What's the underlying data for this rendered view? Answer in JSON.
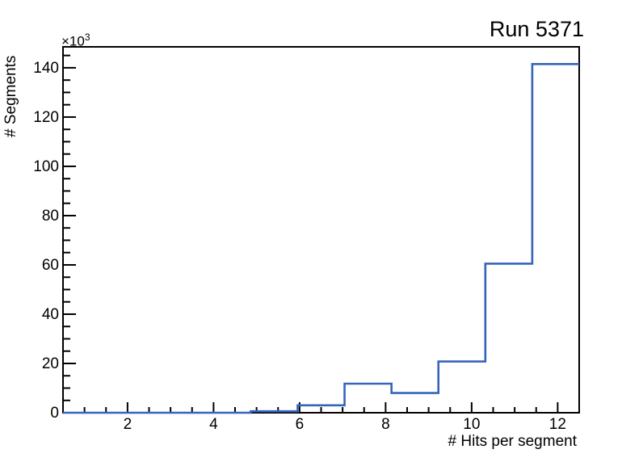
{
  "header": {
    "title": "Run 5371"
  },
  "axes": {
    "x": {
      "title": "# Hits per segment",
      "tick_labels": [
        "2",
        "4",
        "6",
        "8",
        "10",
        "12"
      ]
    },
    "y": {
      "title": "# Segments",
      "multiplier_base": "×10",
      "multiplier_exponent": "3",
      "tick_labels": [
        "0",
        "20",
        "40",
        "60",
        "80",
        "100",
        "120",
        "140"
      ]
    }
  },
  "chart_data": {
    "type": "bar",
    "style": "step-outline-histogram",
    "title": "Run 5371",
    "xlabel": "# Hits per segment",
    "ylabel": "# Segments",
    "y_unit_multiplier": 1000,
    "y_multiplier_label": "×10^3",
    "xlim": [
      0.5,
      12.5
    ],
    "ylim": [
      0,
      148500
    ],
    "bin_edges": [
      0.5,
      1.5909,
      2.6818,
      3.7727,
      4.8636,
      5.9545,
      7.0455,
      8.1364,
      9.2273,
      10.3182,
      11.4091,
      12.5
    ],
    "values": [
      0,
      0,
      0,
      0,
      600,
      3000,
      11800,
      8000,
      20800,
      60500,
      141500
    ],
    "x_major_ticks": [
      2,
      4,
      6,
      8,
      10,
      12
    ],
    "x_minor_tick_step": 0.5,
    "x_minor_tick_range": [
      1.0,
      12.0
    ],
    "y_major_ticks": [
      0,
      20000,
      40000,
      60000,
      80000,
      100000,
      120000,
      140000
    ],
    "y_minor_tick_step": 5000,
    "y_minor_tick_range": [
      5000,
      145000
    ],
    "grid": false,
    "legend": false,
    "line_color": "#3465bd",
    "frame_color": "#000000",
    "background_color": "#ffffff"
  }
}
